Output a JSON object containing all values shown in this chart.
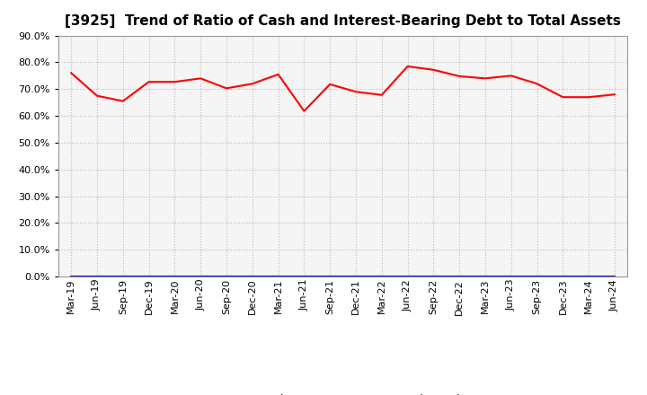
{
  "title": "[3925]  Trend of Ratio of Cash and Interest-Bearing Debt to Total Assets",
  "labels": [
    "Mar-19",
    "Jun-19",
    "Sep-19",
    "Dec-19",
    "Mar-20",
    "Jun-20",
    "Sep-20",
    "Dec-20",
    "Mar-21",
    "Jun-21",
    "Sep-21",
    "Dec-21",
    "Mar-22",
    "Jun-22",
    "Sep-22",
    "Dec-22",
    "Mar-23",
    "Jun-23",
    "Sep-23",
    "Dec-23",
    "Mar-24",
    "Jun-24"
  ],
  "cash": [
    0.76,
    0.675,
    0.655,
    0.727,
    0.727,
    0.74,
    0.703,
    0.72,
    0.755,
    0.618,
    0.718,
    0.69,
    0.678,
    0.785,
    0.772,
    0.748,
    0.74,
    0.75,
    0.72,
    0.67,
    0.67,
    0.68
  ],
  "debt": [
    0.0,
    0.0,
    0.0,
    0.0,
    0.0,
    0.0,
    0.0,
    0.0,
    0.0,
    0.0,
    0.0,
    0.0,
    0.0,
    0.0,
    0.0,
    0.0,
    0.0,
    0.0,
    0.0,
    0.0,
    0.0,
    0.0
  ],
  "cash_color": "#ff0000",
  "debt_color": "#0000cd",
  "background_color": "#ffffff",
  "plot_bg_color": "#f5f5f5",
  "grid_color": "#bbbbbb",
  "ylim": [
    0.0,
    0.9
  ],
  "yticks": [
    0.0,
    0.1,
    0.2,
    0.3,
    0.4,
    0.5,
    0.6,
    0.7,
    0.8,
    0.9
  ],
  "title_fontsize": 11,
  "tick_fontsize": 8,
  "legend_labels": [
    "Cash",
    "Interest-Bearing Debt"
  ]
}
